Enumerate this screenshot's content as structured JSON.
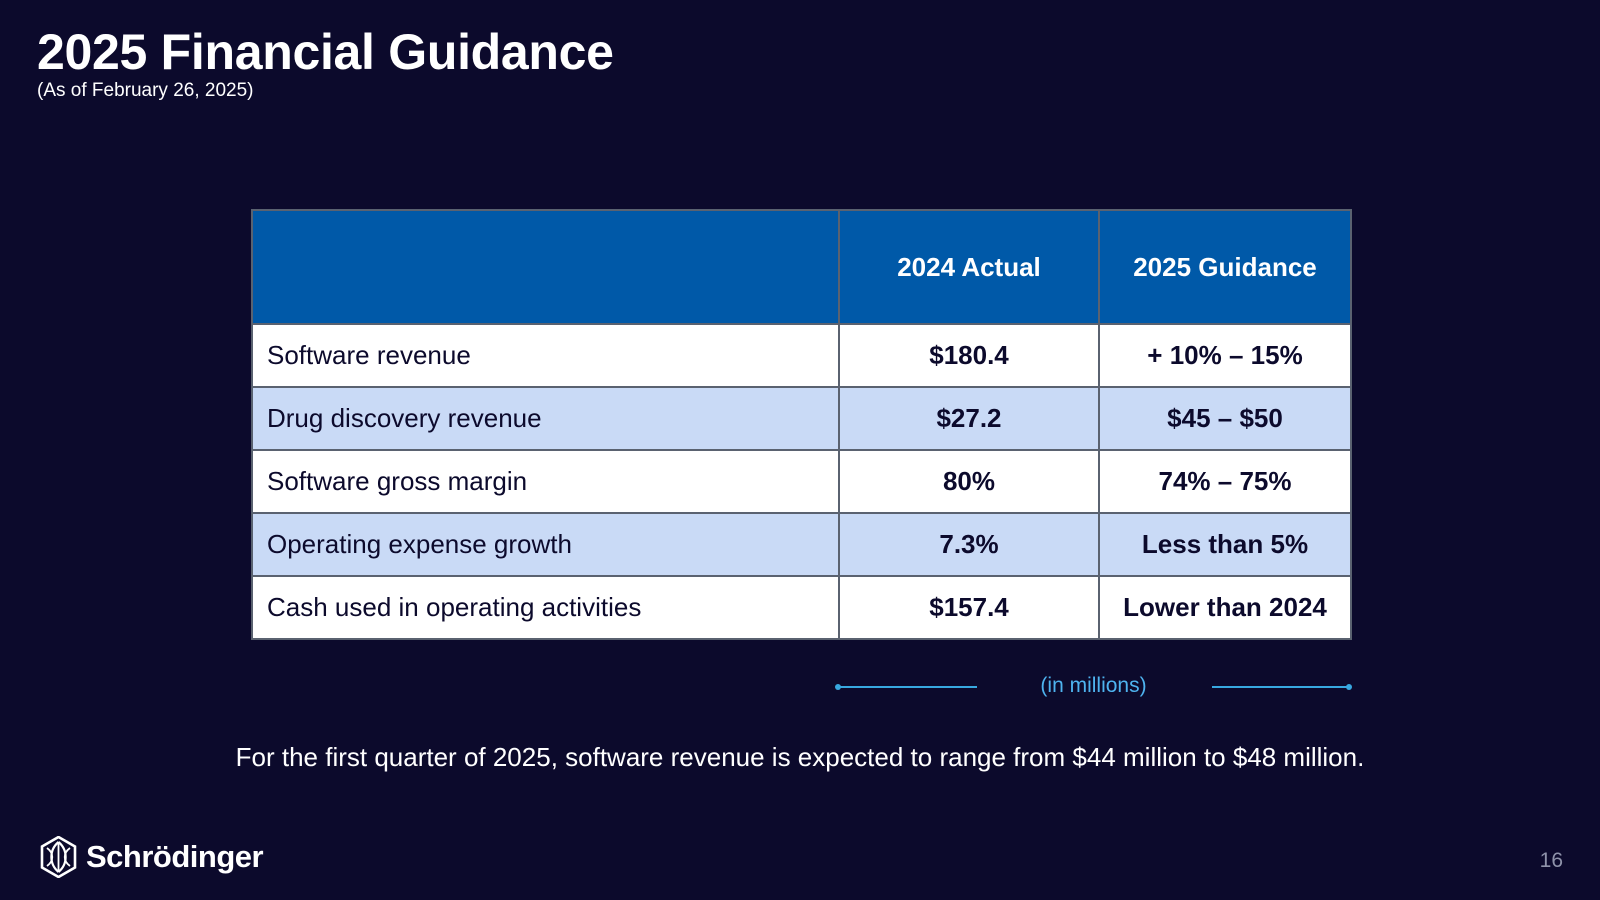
{
  "slide": {
    "title": "2025 Financial Guidance",
    "subtitle": "(As of February 26, 2025)",
    "page_number": "16"
  },
  "table": {
    "headers": [
      "",
      "2024 Actual",
      "2025 Guidance"
    ],
    "rows": [
      {
        "label": "Software revenue",
        "actual": "$180.4",
        "guidance": "+ 10% – 15%"
      },
      {
        "label": "Drug discovery revenue",
        "actual": "$27.2",
        "guidance": "$45 – $50"
      },
      {
        "label": "Software gross margin",
        "actual": "80%",
        "guidance": "74% – 75%"
      },
      {
        "label": "Operating expense growth",
        "actual": "7.3%",
        "guidance": "Less than 5%"
      },
      {
        "label": "Cash used in operating activities",
        "actual": "$157.4",
        "guidance": "Lower than 2024"
      }
    ],
    "units_note": "(in millions)"
  },
  "note": "For the first quarter of 2025, software revenue is expected to range from $44 million to $48 million.",
  "brand": {
    "name": "Schrödinger",
    "logo_icon": "schrodinger-logo-icon"
  },
  "colors": {
    "background": "#0c0a2c",
    "header_fill": "#0059a8",
    "alt_row_fill": "#c9daf6",
    "accent_line": "#38a8e0"
  }
}
